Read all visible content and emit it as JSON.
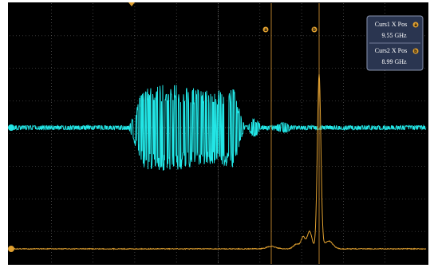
{
  "readout": {
    "cursor1": {
      "label": "Curs1 X Pos",
      "icon": "a",
      "value": "9.55 GHz"
    },
    "cursor2": {
      "label": "Curs2 X Pos",
      "icon": "b",
      "value": "8.99 GHz"
    }
  },
  "cursors": [
    {
      "label": "a"
    },
    {
      "label": "b"
    }
  ]
}
